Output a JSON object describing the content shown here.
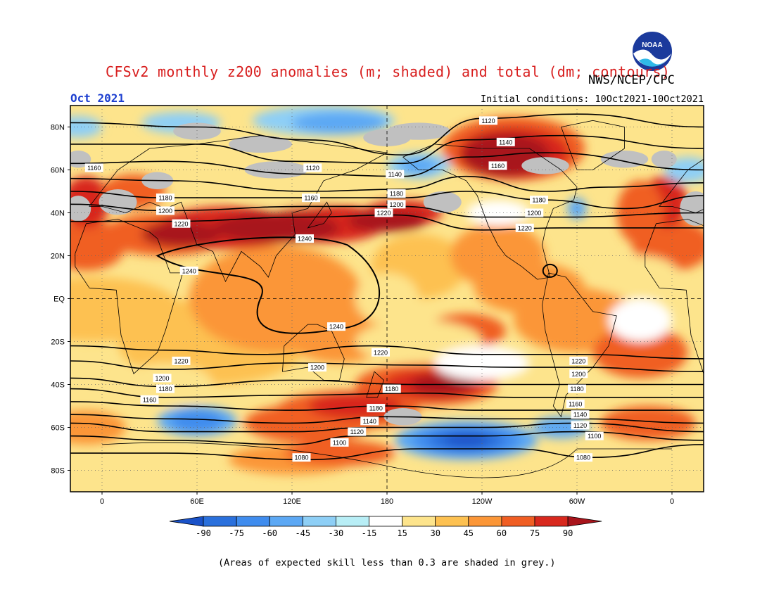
{
  "header": {
    "title": "CFSv2 monthly z200 anomalies (m; shaded) and total (dm; contours)",
    "agency": "NWS/NCEP/CPC",
    "month": "Oct 2021",
    "initial_conditions": "Initial conditions: 10Oct2021-10Oct2021",
    "logo_text": "NOAA"
  },
  "map": {
    "lat_labels": [
      "80N",
      "60N",
      "40N",
      "20N",
      "EQ",
      "20S",
      "40S",
      "60S",
      "80S"
    ],
    "lon_labels": [
      "0",
      "60E",
      "120E",
      "180",
      "120W",
      "60W",
      "0"
    ],
    "contour_labels": [
      {
        "text": "1160",
        "lon": -5,
        "lat": 61
      },
      {
        "text": "1180",
        "lon": 40,
        "lat": 47
      },
      {
        "text": "1200",
        "lon": 40,
        "lat": 41
      },
      {
        "text": "1220",
        "lon": 50,
        "lat": 35
      },
      {
        "text": "1240",
        "lon": 55,
        "lat": 13
      },
      {
        "text": "1120",
        "lon": 133,
        "lat": 61
      },
      {
        "text": "1160",
        "lon": 132,
        "lat": 47
      },
      {
        "text": "1240",
        "lon": 128,
        "lat": 28
      },
      {
        "text": "1140",
        "lon": 185,
        "lat": 58
      },
      {
        "text": "1180",
        "lon": 186,
        "lat": 49
      },
      {
        "text": "1200",
        "lon": 186,
        "lat": 44
      },
      {
        "text": "1220",
        "lon": 178,
        "lat": 40
      },
      {
        "text": "1120",
        "lon": 244,
        "lat": 83
      },
      {
        "text": "1140",
        "lon": 255,
        "lat": 73
      },
      {
        "text": "1160",
        "lon": 250,
        "lat": 62
      },
      {
        "text": "1180",
        "lon": 276,
        "lat": 46
      },
      {
        "text": "1200",
        "lon": 273,
        "lat": 40
      },
      {
        "text": "1220",
        "lon": 267,
        "lat": 33
      },
      {
        "text": "1240",
        "lon": 148,
        "lat": -13
      },
      {
        "text": "1220",
        "lon": 176,
        "lat": -25
      },
      {
        "text": "1200",
        "lon": 136,
        "lat": -32
      },
      {
        "text": "1180",
        "lon": 183,
        "lat": -42
      },
      {
        "text": "1180",
        "lon": 173,
        "lat": -51
      },
      {
        "text": "1140",
        "lon": 169,
        "lat": -57
      },
      {
        "text": "1120",
        "lon": 161,
        "lat": -62
      },
      {
        "text": "1100",
        "lon": 150,
        "lat": -67
      },
      {
        "text": "1080",
        "lon": 126,
        "lat": -74
      },
      {
        "text": "1220",
        "lon": 50,
        "lat": -29
      },
      {
        "text": "1200",
        "lon": 38,
        "lat": -37
      },
      {
        "text": "1180",
        "lon": 40,
        "lat": -42
      },
      {
        "text": "1160",
        "lon": 30,
        "lat": -47
      },
      {
        "text": "1220",
        "lon": 301,
        "lat": -29
      },
      {
        "text": "1200",
        "lon": 301,
        "lat": -35
      },
      {
        "text": "1180",
        "lon": 300,
        "lat": -42
      },
      {
        "text": "1160",
        "lon": 299,
        "lat": -49
      },
      {
        "text": "1140",
        "lon": 302,
        "lat": -54
      },
      {
        "text": "1120",
        "lon": 302,
        "lat": -59
      },
      {
        "text": "1100",
        "lon": 311,
        "lat": -64
      },
      {
        "text": "1080",
        "lon": 304,
        "lat": -74
      }
    ]
  },
  "colorbar": {
    "levels": [
      "-90",
      "-75",
      "-60",
      "-45",
      "-30",
      "-15",
      "15",
      "30",
      "45",
      "60",
      "75",
      "90"
    ],
    "colors": [
      "#1a52c8",
      "#2a70dc",
      "#3f8cee",
      "#5ca8f4",
      "#8ecff6",
      "#b8eef6",
      "#ffffff",
      "#fde48c",
      "#fdc151",
      "#fb9637",
      "#f05e23",
      "#d8281d",
      "#a8141b"
    ]
  },
  "footnote": "(Areas of expected skill less than 0.3 are shaded in grey.)"
}
